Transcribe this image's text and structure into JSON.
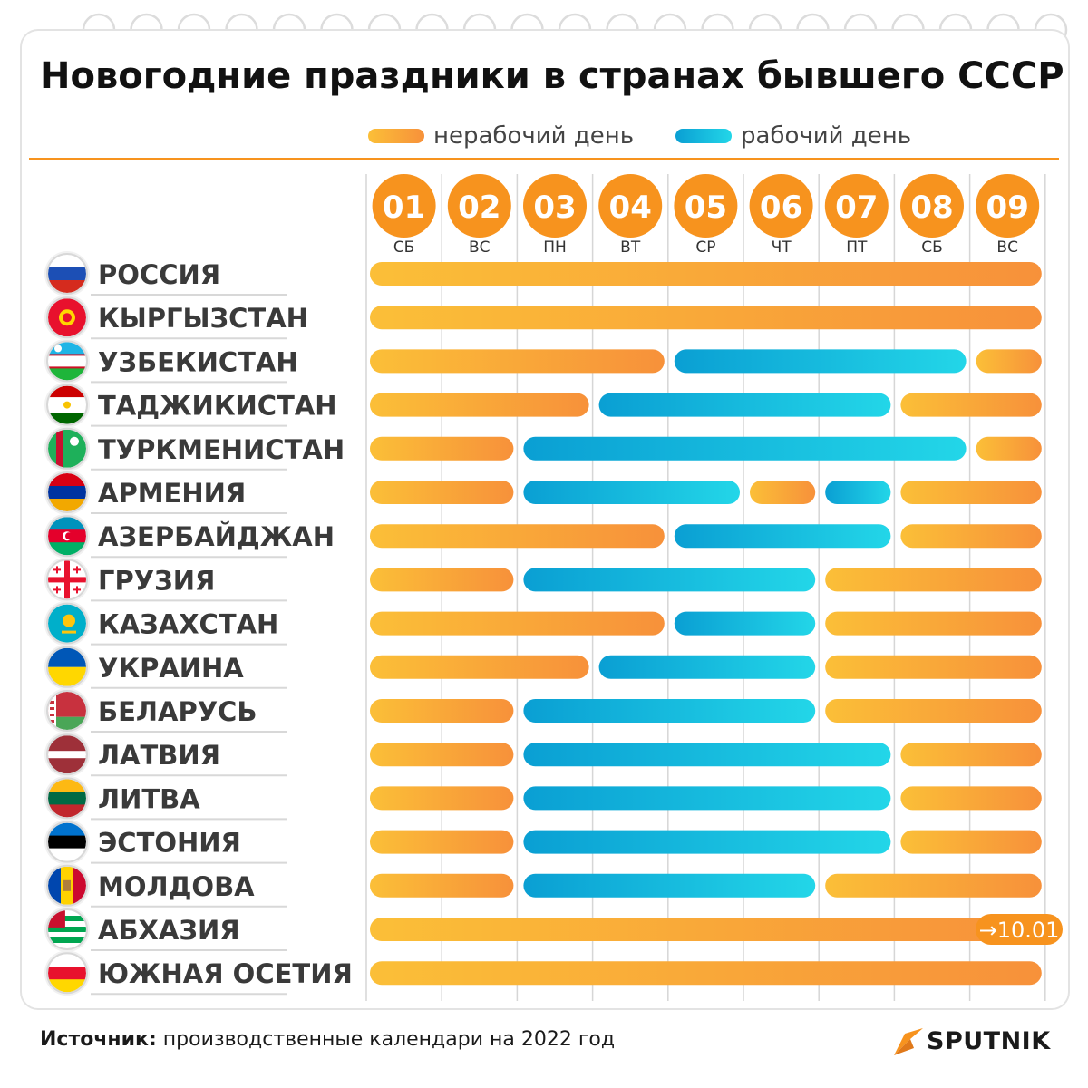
{
  "title": "Новогодние праздники в странах бывшего СССР",
  "legend": {
    "nonworking": "нерабочий день",
    "working": "рабочий день"
  },
  "colors": {
    "nonworking_from": "#fbbf38",
    "nonworking_to": "#f7913a",
    "working_from": "#0a9fd3",
    "working_to": "#23d6e8",
    "accent": "#f7931e"
  },
  "footer": {
    "source_label": "Источник:",
    "source_text": "производственные календари на 2022 год",
    "brand": "SPUTNIK"
  },
  "chart_data": {
    "type": "table",
    "title": "Новогодние праздники в странах бывшего СССР",
    "days": [
      {
        "num": "01",
        "dow": "СБ"
      },
      {
        "num": "02",
        "dow": "ВС"
      },
      {
        "num": "03",
        "dow": "ПН"
      },
      {
        "num": "04",
        "dow": "ВТ"
      },
      {
        "num": "05",
        "dow": "СР"
      },
      {
        "num": "06",
        "dow": "ЧТ"
      },
      {
        "num": "07",
        "dow": "ПТ"
      },
      {
        "num": "08",
        "dow": "СБ"
      },
      {
        "num": "09",
        "dow": "ВС"
      }
    ],
    "countries": [
      {
        "name": "РОССИЯ",
        "flag": "russia-flag",
        "segments": [
          {
            "type": "off",
            "from": 1,
            "to": 9
          }
        ]
      },
      {
        "name": "КЫРГЫЗСТАН",
        "flag": "kyrgyzstan-flag",
        "segments": [
          {
            "type": "off",
            "from": 1,
            "to": 9
          }
        ]
      },
      {
        "name": "УЗБЕКИСТАН",
        "flag": "uzbekistan-flag",
        "segments": [
          {
            "type": "off",
            "from": 1,
            "to": 4
          },
          {
            "type": "work",
            "from": 5,
            "to": 8
          },
          {
            "type": "off",
            "from": 9,
            "to": 9
          }
        ]
      },
      {
        "name": "ТАДЖИКИСТАН",
        "flag": "tajikistan-flag",
        "segments": [
          {
            "type": "off",
            "from": 1,
            "to": 3
          },
          {
            "type": "work",
            "from": 4,
            "to": 7
          },
          {
            "type": "off",
            "from": 8,
            "to": 9
          }
        ]
      },
      {
        "name": "ТУРКМЕНИСТАН",
        "flag": "turkmenistan-flag",
        "segments": [
          {
            "type": "off",
            "from": 1,
            "to": 2
          },
          {
            "type": "work",
            "from": 3,
            "to": 8
          },
          {
            "type": "off",
            "from": 9,
            "to": 9
          }
        ]
      },
      {
        "name": "АРМЕНИЯ",
        "flag": "armenia-flag",
        "segments": [
          {
            "type": "off",
            "from": 1,
            "to": 2
          },
          {
            "type": "work",
            "from": 3,
            "to": 5
          },
          {
            "type": "off",
            "from": 6,
            "to": 6
          },
          {
            "type": "work",
            "from": 7,
            "to": 7
          },
          {
            "type": "off",
            "from": 8,
            "to": 9
          }
        ]
      },
      {
        "name": "АЗЕРБАЙДЖАН",
        "flag": "azerbaijan-flag",
        "segments": [
          {
            "type": "off",
            "from": 1,
            "to": 4
          },
          {
            "type": "work",
            "from": 5,
            "to": 7
          },
          {
            "type": "off",
            "from": 8,
            "to": 9
          }
        ]
      },
      {
        "name": "ГРУЗИЯ",
        "flag": "georgia-flag",
        "segments": [
          {
            "type": "off",
            "from": 1,
            "to": 2
          },
          {
            "type": "work",
            "from": 3,
            "to": 6
          },
          {
            "type": "off",
            "from": 7,
            "to": 9
          }
        ]
      },
      {
        "name": "КАЗАХСТАН",
        "flag": "kazakhstan-flag",
        "segments": [
          {
            "type": "off",
            "from": 1,
            "to": 4
          },
          {
            "type": "work",
            "from": 5,
            "to": 6
          },
          {
            "type": "off",
            "from": 7,
            "to": 9
          }
        ]
      },
      {
        "name": "УКРАИНА",
        "flag": "ukraine-flag",
        "segments": [
          {
            "type": "off",
            "from": 1,
            "to": 3
          },
          {
            "type": "work",
            "from": 4,
            "to": 6
          },
          {
            "type": "off",
            "from": 7,
            "to": 9
          }
        ]
      },
      {
        "name": "БЕЛАРУСЬ",
        "flag": "belarus-flag",
        "segments": [
          {
            "type": "off",
            "from": 1,
            "to": 2
          },
          {
            "type": "work",
            "from": 3,
            "to": 6
          },
          {
            "type": "off",
            "from": 7,
            "to": 9
          }
        ]
      },
      {
        "name": "ЛАТВИЯ",
        "flag": "latvia-flag",
        "segments": [
          {
            "type": "off",
            "from": 1,
            "to": 2
          },
          {
            "type": "work",
            "from": 3,
            "to": 7
          },
          {
            "type": "off",
            "from": 8,
            "to": 9
          }
        ]
      },
      {
        "name": "ЛИТВА",
        "flag": "lithuania-flag",
        "segments": [
          {
            "type": "off",
            "from": 1,
            "to": 2
          },
          {
            "type": "work",
            "from": 3,
            "to": 7
          },
          {
            "type": "off",
            "from": 8,
            "to": 9
          }
        ]
      },
      {
        "name": "ЭСТОНИЯ",
        "flag": "estonia-flag",
        "segments": [
          {
            "type": "off",
            "from": 1,
            "to": 2
          },
          {
            "type": "work",
            "from": 3,
            "to": 7
          },
          {
            "type": "off",
            "from": 8,
            "to": 9
          }
        ]
      },
      {
        "name": "МОЛДОВА",
        "flag": "moldova-flag",
        "segments": [
          {
            "type": "off",
            "from": 1,
            "to": 2
          },
          {
            "type": "work",
            "from": 3,
            "to": 6
          },
          {
            "type": "off",
            "from": 7,
            "to": 9
          }
        ]
      },
      {
        "name": "АБХАЗИЯ",
        "flag": "abkhazia-flag",
        "segments": [
          {
            "type": "off",
            "from": 1,
            "to": 9
          }
        ],
        "extension_label": "→10.01"
      },
      {
        "name": "ЮЖНАЯ ОСЕТИЯ",
        "flag": "south-ossetia-flag",
        "segments": [
          {
            "type": "off",
            "from": 1,
            "to": 9
          }
        ]
      }
    ]
  }
}
